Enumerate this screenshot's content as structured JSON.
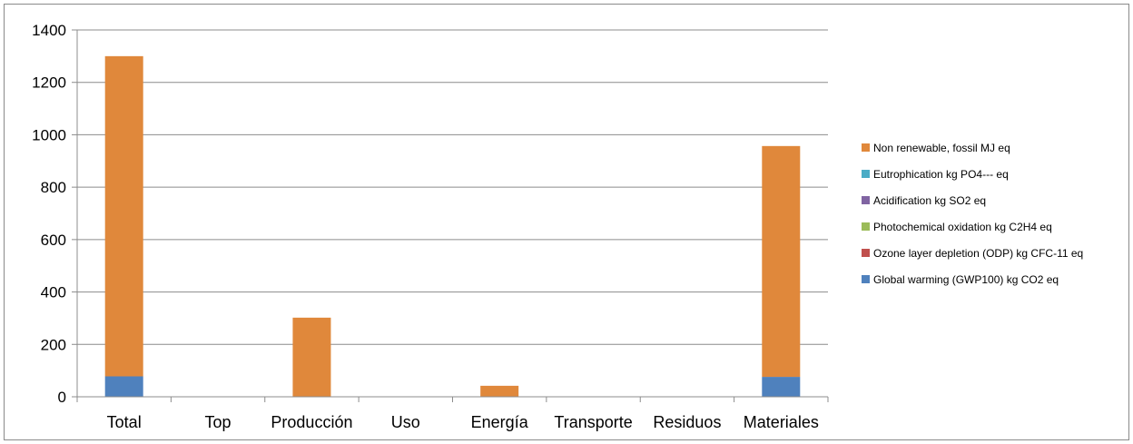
{
  "chart_data": {
    "type": "bar",
    "stacked": true,
    "title": "",
    "xlabel": "",
    "ylabel": "",
    "ylim": [
      0,
      1400
    ],
    "yticks": [
      0,
      200,
      400,
      600,
      800,
      1000,
      1200,
      1400
    ],
    "grid": true,
    "legend_position": "right",
    "categories": [
      "Total",
      "Top",
      "Producción",
      "Uso",
      "Energía",
      "Transporte",
      "Residuos",
      "Materiales"
    ],
    "series": [
      {
        "name": "Global warming (GWP100) kg CO2 eq",
        "color": "#4f81bd",
        "values": [
          78,
          0,
          0,
          0,
          0,
          0,
          0,
          76
        ]
      },
      {
        "name": "Ozone layer depletion (ODP) kg CFC-11 eq",
        "color": "#c0504d",
        "values": [
          0,
          0,
          0,
          0,
          0,
          0,
          0,
          0
        ]
      },
      {
        "name": "Photochemical oxidation kg C2H4 eq",
        "color": "#9bbb59",
        "values": [
          0,
          0,
          0,
          0,
          0,
          0,
          0,
          0
        ]
      },
      {
        "name": "Acidification kg SO2 eq",
        "color": "#8064a2",
        "values": [
          0,
          0,
          0,
          0,
          0,
          0,
          0,
          0
        ]
      },
      {
        "name": "Eutrophication kg PO4--- eq",
        "color": "#4bacc6",
        "values": [
          0,
          0,
          0,
          0,
          0,
          0,
          0,
          0
        ]
      },
      {
        "name": "Non renewable, fossil MJ eq",
        "color": "#e0883b",
        "values": [
          1222,
          0,
          302,
          0,
          42,
          0,
          0,
          881
        ]
      }
    ]
  }
}
